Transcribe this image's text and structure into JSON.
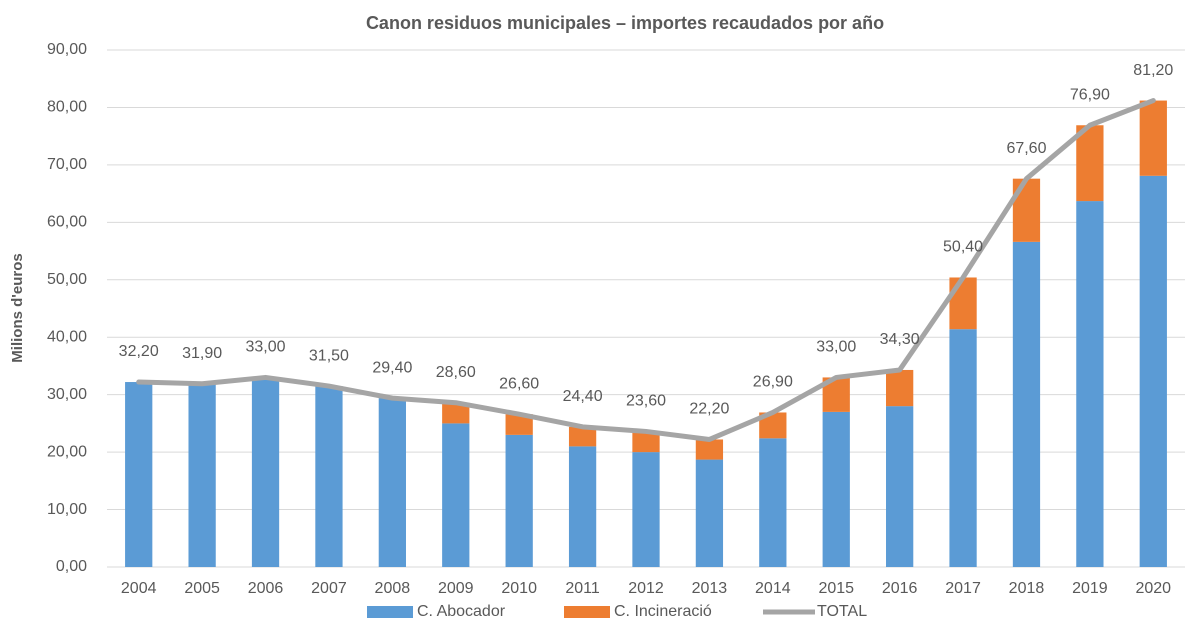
{
  "chart_data": {
    "type": "bar",
    "stacked": true,
    "title": "Canon residuos municipales – importes recaudados por año",
    "y_label": "Milions d'euros",
    "categories": [
      "2004",
      "2005",
      "2006",
      "2007",
      "2008",
      "2009",
      "2010",
      "2011",
      "2012",
      "2013",
      "2014",
      "2015",
      "2016",
      "2017",
      "2018",
      "2019",
      "2020"
    ],
    "series": [
      {
        "name": "C. Abocador",
        "type": "bar",
        "color": "#5b9bd5",
        "values": [
          32.2,
          31.9,
          33.0,
          31.5,
          29.4,
          25.0,
          23.0,
          21.0,
          20.0,
          18.7,
          22.4,
          27.0,
          28.0,
          41.4,
          56.6,
          63.7,
          68.1
        ]
      },
      {
        "name": "C. Incineració",
        "type": "bar",
        "color": "#ed7d31",
        "values": [
          0,
          0,
          0,
          0,
          0,
          3.6,
          3.6,
          3.4,
          3.6,
          3.5,
          4.5,
          6.0,
          6.3,
          9.0,
          11.0,
          13.2,
          13.1
        ]
      },
      {
        "name": "TOTAL",
        "type": "line",
        "color": "#a5a5a5",
        "values": [
          32.2,
          31.9,
          33.0,
          31.5,
          29.4,
          28.6,
          26.6,
          24.4,
          23.6,
          22.2,
          26.9,
          33.0,
          34.3,
          50.4,
          67.6,
          76.9,
          81.2
        ],
        "value_labels": [
          "32,20",
          "31,90",
          "33,00",
          "31,50",
          "29,40",
          "28,60",
          "26,60",
          "24,40",
          "23,60",
          "22,20",
          "26,90",
          "33,00",
          "34,30",
          "50,40",
          "67,60",
          "76,90",
          "81,20"
        ]
      }
    ],
    "ylim": [
      0,
      90
    ],
    "yticks": [
      {
        "value": 0,
        "label": "0,00"
      },
      {
        "value": 10,
        "label": "10,00"
      },
      {
        "value": 20,
        "label": "20,00"
      },
      {
        "value": 30,
        "label": "30,00"
      },
      {
        "value": 40,
        "label": "40,00"
      },
      {
        "value": 50,
        "label": "50,00"
      },
      {
        "value": 60,
        "label": "60,00"
      },
      {
        "value": 70,
        "label": "70,00"
      },
      {
        "value": 80,
        "label": "80,00"
      },
      {
        "value": 90,
        "label": "90,00"
      }
    ],
    "grid": true,
    "legend": "bottom"
  }
}
